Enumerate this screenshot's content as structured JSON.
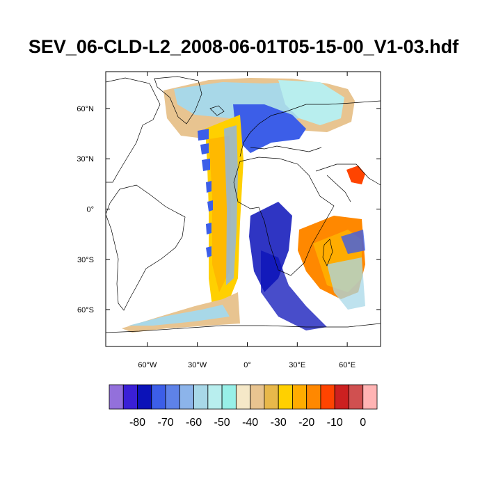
{
  "title": "SEV_06-CLD-L2_2008-06-01T05-15-00_V1-03.hdf",
  "map": {
    "projection": "cylindrical-equidistant",
    "lon_range": [
      -85,
      80
    ],
    "lat_range": [
      -82,
      82
    ],
    "lon_ticks": [
      {
        "value": -60,
        "label": "60°W"
      },
      {
        "value": -30,
        "label": "30°W"
      },
      {
        "value": 0,
        "label": "0°"
      },
      {
        "value": 30,
        "label": "30°E"
      },
      {
        "value": 60,
        "label": "60°E"
      }
    ],
    "lat_ticks": [
      {
        "value": 60,
        "label": "60°N"
      },
      {
        "value": 30,
        "label": "30°N"
      },
      {
        "value": 0,
        "label": "0°"
      },
      {
        "value": -30,
        "label": "30°S"
      },
      {
        "value": -60,
        "label": "60°S"
      }
    ]
  },
  "colorbar": {
    "colors": [
      "#9370db",
      "#3a1fd6",
      "#0b12b8",
      "#3c5ee8",
      "#5e82e8",
      "#8cb4ea",
      "#a8d8e8",
      "#b8eeee",
      "#98f0e8",
      "#f5e8c8",
      "#e8c490",
      "#e8b84a",
      "#ffd000",
      "#ffac00",
      "#ff8800",
      "#ff4400",
      "#cc2020",
      "#d05050",
      "#ffb4b4"
    ],
    "labels": [
      {
        "after_box": 2,
        "text": "-80"
      },
      {
        "after_box": 4,
        "text": "-70"
      },
      {
        "after_box": 6,
        "text": "-60"
      },
      {
        "after_box": 8,
        "text": "-50"
      },
      {
        "after_box": 10,
        "text": "-40"
      },
      {
        "after_box": 12,
        "text": "-30"
      },
      {
        "after_box": 14,
        "text": "-20"
      },
      {
        "after_box": 16,
        "text": "-10"
      },
      {
        "after_box": 18,
        "text": "0"
      }
    ]
  }
}
